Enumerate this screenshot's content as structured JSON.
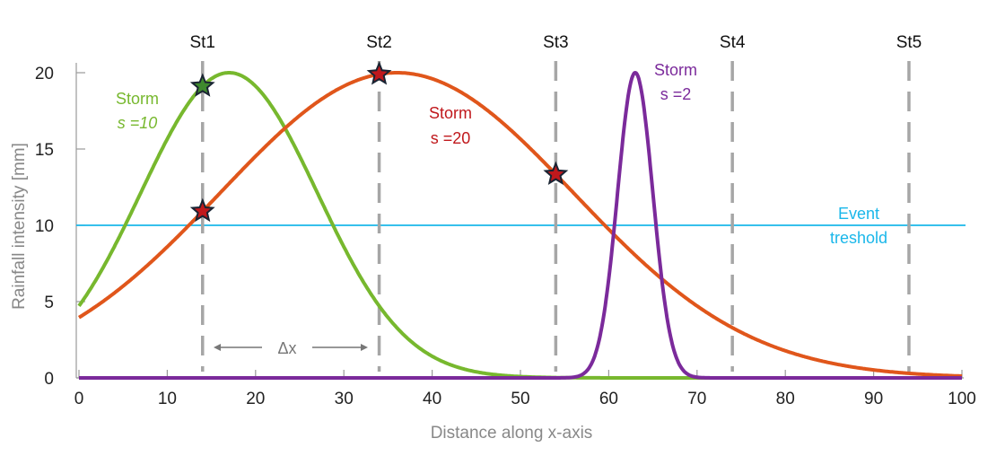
{
  "chart_data": {
    "type": "line",
    "title": "",
    "xlabel": "Distance along x-axis",
    "ylabel": "Rainfall intensity [mm]",
    "xlim": [
      0,
      100
    ],
    "ylim": [
      0,
      20
    ],
    "xticks": [
      0,
      10,
      20,
      30,
      40,
      50,
      60,
      70,
      80,
      90,
      100
    ],
    "yticks": [
      0,
      5,
      10,
      15,
      20
    ],
    "grid": false,
    "series": [
      {
        "name": "Storm s =10",
        "label_line1": "Storm",
        "label_line2": "s =10",
        "amplitude": 20,
        "center": 17,
        "sigma": 10,
        "color": "#77b82e"
      },
      {
        "name": "Storm s =20",
        "label_line1": "Storm",
        "label_line2": "s =20",
        "amplitude": 20,
        "center": 36,
        "sigma": 20,
        "color": "#e0561b",
        "label_color": "#c0181c"
      },
      {
        "name": "Storm s =2",
        "label_line1": "Storm",
        "label_line2": "s =2",
        "amplitude": 20,
        "center": 63,
        "sigma": 2,
        "color": "#7b2a9b"
      }
    ],
    "threshold": {
      "value": 10,
      "label_line1": "Event",
      "label_line2": "treshold",
      "color": "#1ab7ea"
    },
    "stations": [
      {
        "name": "St1",
        "x": 14
      },
      {
        "name": "St2",
        "x": 34
      },
      {
        "name": "St3",
        "x": 54
      },
      {
        "name": "St4",
        "x": 74
      },
      {
        "name": "St5",
        "x": 94
      }
    ],
    "station_markers": [
      {
        "x": 14,
        "series": 0,
        "fill": "#3f8a2e"
      },
      {
        "x": 14,
        "series": 1,
        "fill": "#c0181c"
      },
      {
        "x": 34,
        "series": 1,
        "fill": "#c0181c"
      },
      {
        "x": 54,
        "series": 1,
        "fill": "#c0181c"
      }
    ],
    "spacing_annotation": {
      "label": "Δx",
      "from": 14,
      "to": 34
    }
  }
}
